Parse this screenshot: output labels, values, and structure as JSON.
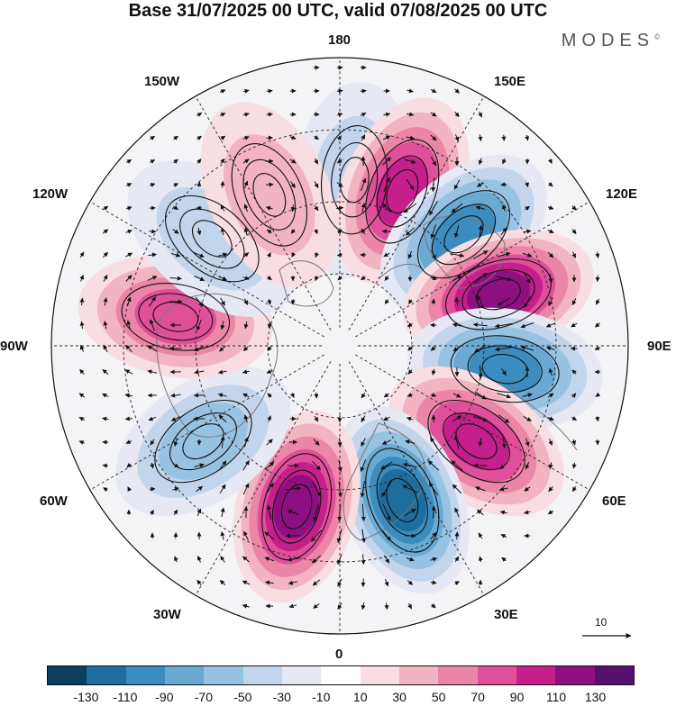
{
  "title": "Base 31/07/2025 00 UTC, valid 07/08/2025 00 UTC",
  "brand": "MODES",
  "brand_mark": "©",
  "longitude_labels": {
    "top": "180",
    "bottom": "0",
    "left": "90W",
    "right": "90E",
    "ul1": "150W",
    "ul2": "120W",
    "ur1": "150E",
    "ur2": "120E",
    "ll1": "60W",
    "ll2": "30W",
    "lr1": "60E",
    "lr2": "30E"
  },
  "reference_vector": {
    "label": "10",
    "icon": "arrow-right-icon"
  },
  "colorbar": {
    "tick_labels": [
      "-130",
      "-110",
      "-90",
      "-70",
      "-50",
      "-30",
      "-10",
      "10",
      "30",
      "50",
      "70",
      "90",
      "110",
      "130"
    ],
    "colors": [
      "#0c3f62",
      "#1f6c9e",
      "#3d8cc0",
      "#6aa9d2",
      "#98c2e2",
      "#c2d5ec",
      "#e6e8f4",
      "#ffffff",
      "#f8dde2",
      "#f2b3c2",
      "#ec86a8",
      "#e0509a",
      "#c41f8a",
      "#8e0f82",
      "#561070"
    ]
  },
  "anomaly_centers": [
    {
      "lon": 175,
      "value": -45
    },
    {
      "lon": 158,
      "value": 100
    },
    {
      "lon": 132,
      "value": -95
    },
    {
      "lon": 108,
      "value": 110
    },
    {
      "lon": 82,
      "value": -95
    },
    {
      "lon": 55,
      "value": 90
    },
    {
      "lon": 22,
      "value": -115
    },
    {
      "lon": -15,
      "value": 120
    },
    {
      "lon": -55,
      "value": -60
    },
    {
      "lon": -100,
      "value": 80
    },
    {
      "lon": -130,
      "value": -35
    },
    {
      "lon": -155,
      "value": 30
    }
  ]
}
